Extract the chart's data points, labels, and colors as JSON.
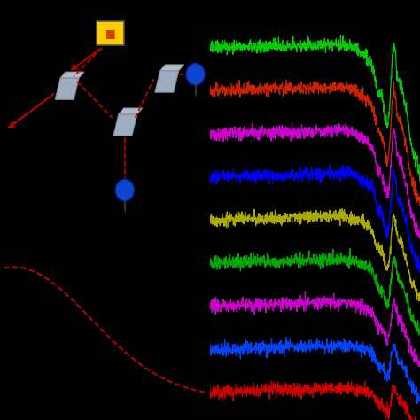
{
  "background_color": "#000000",
  "schematic_bg": "#ffffff",
  "dashed_curve": {
    "color": "#cc0000",
    "linestyle": "--",
    "linewidth": 1.3
  },
  "spectra": {
    "colors_bottom_to_top": [
      "#cc0000",
      "#0044ff",
      "#cc00cc",
      "#00aa00",
      "#aaaa00",
      "#0000ff",
      "#cc00cc",
      "#cc2200",
      "#00cc00"
    ],
    "noise_amp": 0.008
  }
}
